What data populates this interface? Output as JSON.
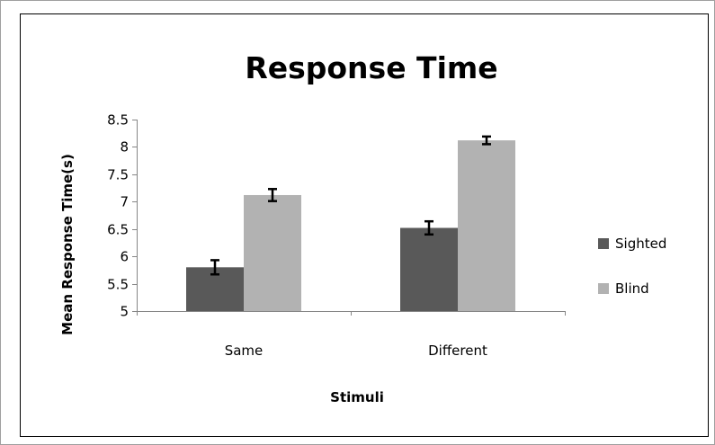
{
  "chart_data": {
    "type": "bar",
    "title": "Response Time",
    "xlabel": "Stimuli",
    "ylabel": "Mean Response Time(s)",
    "categories": [
      "Same",
      "Different"
    ],
    "series": [
      {
        "name": "Sighted",
        "values": [
          5.8,
          6.52
        ],
        "errors": [
          0.13,
          0.12
        ],
        "color": "#595959"
      },
      {
        "name": "Blind",
        "values": [
          7.12,
          8.12
        ],
        "errors": [
          0.11,
          0.07
        ],
        "color": "#b2b2b2"
      }
    ],
    "ylim": [
      5,
      8.5
    ],
    "yticks": [
      "5",
      "5.5",
      "6",
      "6.5",
      "7",
      "7.5",
      "8",
      "8.5"
    ],
    "grid": false,
    "legend_position": "right"
  }
}
